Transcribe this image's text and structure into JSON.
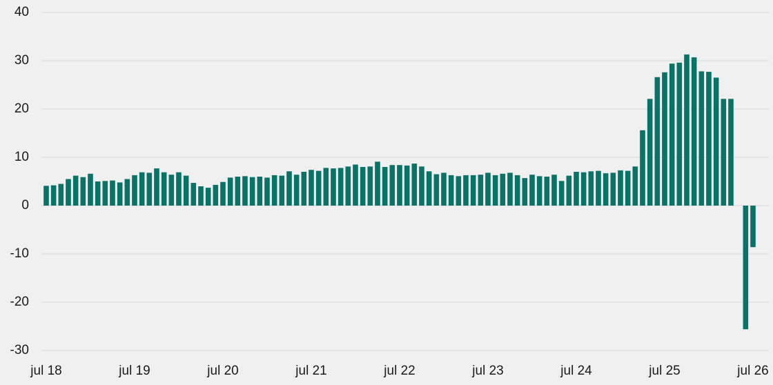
{
  "chart_data": {
    "type": "bar",
    "color": "#0b7267",
    "grid": true,
    "ylim": [
      -30,
      40
    ],
    "yticks": [
      -30,
      -20,
      -10,
      0,
      10,
      20,
      30,
      40
    ],
    "categories": [
      "jul 18",
      null,
      null,
      null,
      null,
      null,
      null,
      null,
      null,
      null,
      null,
      null,
      "jul 19",
      null,
      null,
      null,
      null,
      null,
      null,
      null,
      null,
      null,
      null,
      null,
      "jul 20",
      null,
      null,
      null,
      null,
      null,
      null,
      null,
      null,
      null,
      null,
      null,
      "jul 21",
      null,
      null,
      null,
      null,
      null,
      null,
      null,
      null,
      null,
      null,
      null,
      "jul 22",
      null,
      null,
      null,
      null,
      null,
      null,
      null,
      null,
      null,
      null,
      null,
      "jul 23",
      null,
      null,
      null,
      null,
      null,
      null,
      null,
      null,
      null,
      null,
      null,
      "jul 24",
      null,
      null,
      null,
      null,
      null,
      null,
      null,
      null,
      null,
      null,
      null,
      "jul 25",
      null,
      null,
      null,
      null,
      null,
      null,
      null,
      null,
      null,
      null,
      null,
      "jul 26"
    ],
    "values": [
      4.1,
      4.2,
      4.5,
      5.5,
      6.2,
      5.9,
      6.6,
      5.0,
      5.1,
      5.2,
      4.8,
      5.5,
      6.3,
      6.9,
      6.8,
      7.7,
      6.9,
      6.4,
      6.9,
      6.2,
      4.7,
      4.0,
      3.7,
      4.3,
      4.9,
      5.8,
      6.0,
      6.1,
      5.9,
      6.0,
      5.8,
      6.3,
      6.2,
      7.1,
      6.4,
      7.0,
      7.4,
      7.2,
      7.8,
      7.7,
      7.8,
      8.1,
      8.5,
      8.0,
      8.1,
      9.1,
      8.0,
      8.4,
      8.4,
      8.3,
      8.7,
      8.1,
      7.1,
      6.5,
      6.8,
      6.3,
      6.1,
      6.3,
      6.3,
      6.4,
      6.8,
      6.3,
      6.6,
      6.8,
      6.3,
      5.7,
      6.4,
      6.1,
      6.0,
      6.4,
      5.1,
      6.2,
      7.0,
      6.9,
      7.1,
      7.2,
      6.7,
      6.8,
      7.3,
      7.2,
      8.1,
      15.6,
      22.1,
      26.6,
      27.6,
      29.4,
      29.6,
      31.3,
      30.7,
      27.8,
      27.7,
      26.5,
      22.1,
      22.1,
      null,
      -25.6,
      -8.6
    ]
  }
}
